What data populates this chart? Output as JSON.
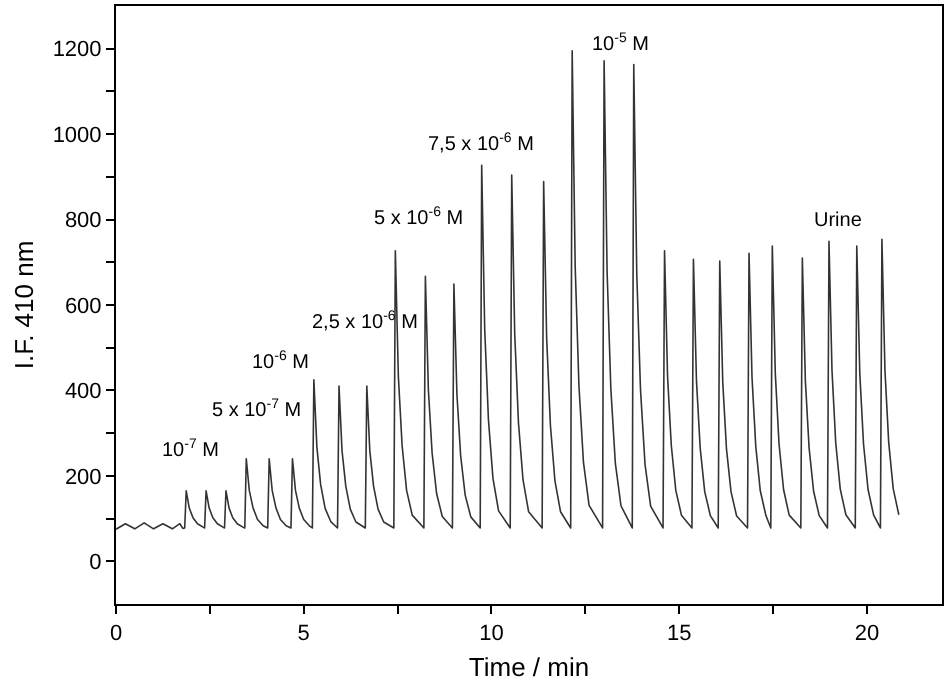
{
  "chart_data": {
    "type": "line",
    "xlabel": "Time / min",
    "ylabel": "I.F. 410 nm",
    "xlim": [
      0,
      22
    ],
    "ylim": [
      -100,
      1300
    ],
    "xticks": [
      0,
      {
        "value": 2.5,
        "label": null
      },
      5,
      {
        "value": 7.5,
        "label": null
      },
      10,
      {
        "value": 12.5,
        "label": null
      },
      15,
      {
        "value": 17.5,
        "label": null
      },
      20
    ],
    "yticks": [
      0,
      {
        "value": 100,
        "label": null
      },
      200,
      {
        "value": 300,
        "label": null
      },
      400,
      {
        "value": 500,
        "label": null
      },
      600,
      {
        "value": 700,
        "label": null
      },
      800,
      {
        "value": 900,
        "label": null
      },
      1000,
      {
        "value": 1100,
        "label": null
      },
      1200
    ],
    "color": "#333333",
    "x": [
      0,
      0.25,
      0.5,
      0.75,
      1.0,
      1.25,
      1.5,
      1.7,
      1.78,
      1.83,
      1.87,
      1.95,
      2.05,
      2.17,
      2.32,
      2.36,
      2.4,
      2.48,
      2.58,
      2.7,
      2.85,
      2.89,
      2.93,
      3.01,
      3.11,
      3.23,
      3.38,
      3.43,
      3.47,
      3.55,
      3.65,
      3.77,
      3.92,
      4.04,
      4.08,
      4.16,
      4.26,
      4.38,
      4.53,
      4.66,
      4.7,
      4.78,
      4.88,
      5.0,
      5.15,
      5.23,
      5.27,
      5.35,
      5.45,
      5.57,
      5.72,
      5.9,
      5.94,
      6.02,
      6.12,
      6.24,
      6.39,
      6.64,
      6.68,
      6.76,
      6.86,
      6.98,
      7.13,
      7.4,
      7.44,
      7.52,
      7.62,
      7.74,
      7.89,
      8.2,
      8.24,
      8.32,
      8.42,
      8.54,
      8.69,
      8.96,
      9.0,
      9.08,
      9.18,
      9.3,
      9.45,
      9.7,
      9.74,
      9.82,
      9.92,
      10.04,
      10.19,
      10.5,
      10.54,
      10.62,
      10.72,
      10.84,
      10.99,
      11.35,
      11.39,
      11.47,
      11.57,
      11.69,
      11.84,
      12.11,
      12.15,
      12.23,
      12.33,
      12.45,
      12.6,
      12.96,
      13.0,
      13.08,
      13.18,
      13.3,
      13.45,
      13.75,
      13.79,
      13.87,
      13.97,
      14.09,
      14.24,
      14.57,
      14.61,
      14.69,
      14.79,
      14.91,
      15.06,
      15.34,
      15.38,
      15.46,
      15.56,
      15.68,
      15.83,
      16.04,
      16.08,
      16.16,
      16.26,
      16.38,
      16.53,
      16.82,
      16.86,
      16.94,
      17.04,
      17.16,
      17.31,
      17.44,
      17.48,
      17.56,
      17.66,
      17.78,
      17.93,
      18.24,
      18.28,
      18.36,
      18.46,
      18.58,
      18.73,
      18.95,
      18.99,
      19.07,
      19.17,
      19.29,
      19.44,
      19.69,
      19.73,
      19.81,
      19.91,
      20.03,
      20.18,
      20.36,
      20.4,
      20.48,
      20.58,
      20.7,
      20.85
    ],
    "values": [
      75,
      88,
      76,
      90,
      76,
      88,
      76,
      88,
      77,
      78,
      165,
      125,
      102,
      88,
      80,
      78,
      165,
      125,
      102,
      88,
      80,
      78,
      165,
      125,
      102,
      88,
      80,
      78,
      240,
      166,
      125,
      98,
      83,
      78,
      240,
      166,
      125,
      98,
      83,
      78,
      240,
      166,
      125,
      98,
      83,
      78,
      425,
      268,
      180,
      124,
      93,
      78,
      410,
      259,
      176,
      122,
      92,
      78,
      410,
      259,
      176,
      122,
      92,
      78,
      727,
      434,
      271,
      166,
      108,
      78,
      667,
      401,
      253,
      158,
      105,
      78,
      649,
      391,
      247,
      155,
      104,
      78,
      927,
      544,
      331,
      194,
      118,
      78,
      904,
      531,
      324,
      191,
      116,
      78,
      889,
      523,
      319,
      189,
      116,
      78,
      1195,
      691,
      411,
      232,
      131,
      78,
      1172,
      678,
      404,
      229,
      130,
      78,
      1163,
      673,
      401,
      227,
      129,
      78,
      727,
      434,
      271,
      166,
      108,
      78,
      707,
      423,
      265,
      163,
      107,
      78,
      703,
      420,
      263,
      163,
      106,
      78,
      721,
      430,
      269,
      165,
      107,
      78,
      738,
      440,
      274,
      168,
      108,
      78,
      710,
      424,
      266,
      164,
      107,
      78,
      749,
      446,
      277,
      169,
      109,
      78,
      738,
      440,
      274,
      168,
      108,
      78,
      754,
      448,
      279,
      170,
      109
    ],
    "annotations": [
      "10$^{-7}$ M",
      "5 x 10$^{-7}$ M",
      "10$^{-6}$ M",
      "2,5 x 10$^{-6}$ M",
      "5 x 10$^{-6}$ M",
      "7,5 x 10$^{-6}$ M",
      "10$^{-5}$ M",
      "Urine"
    ]
  }
}
